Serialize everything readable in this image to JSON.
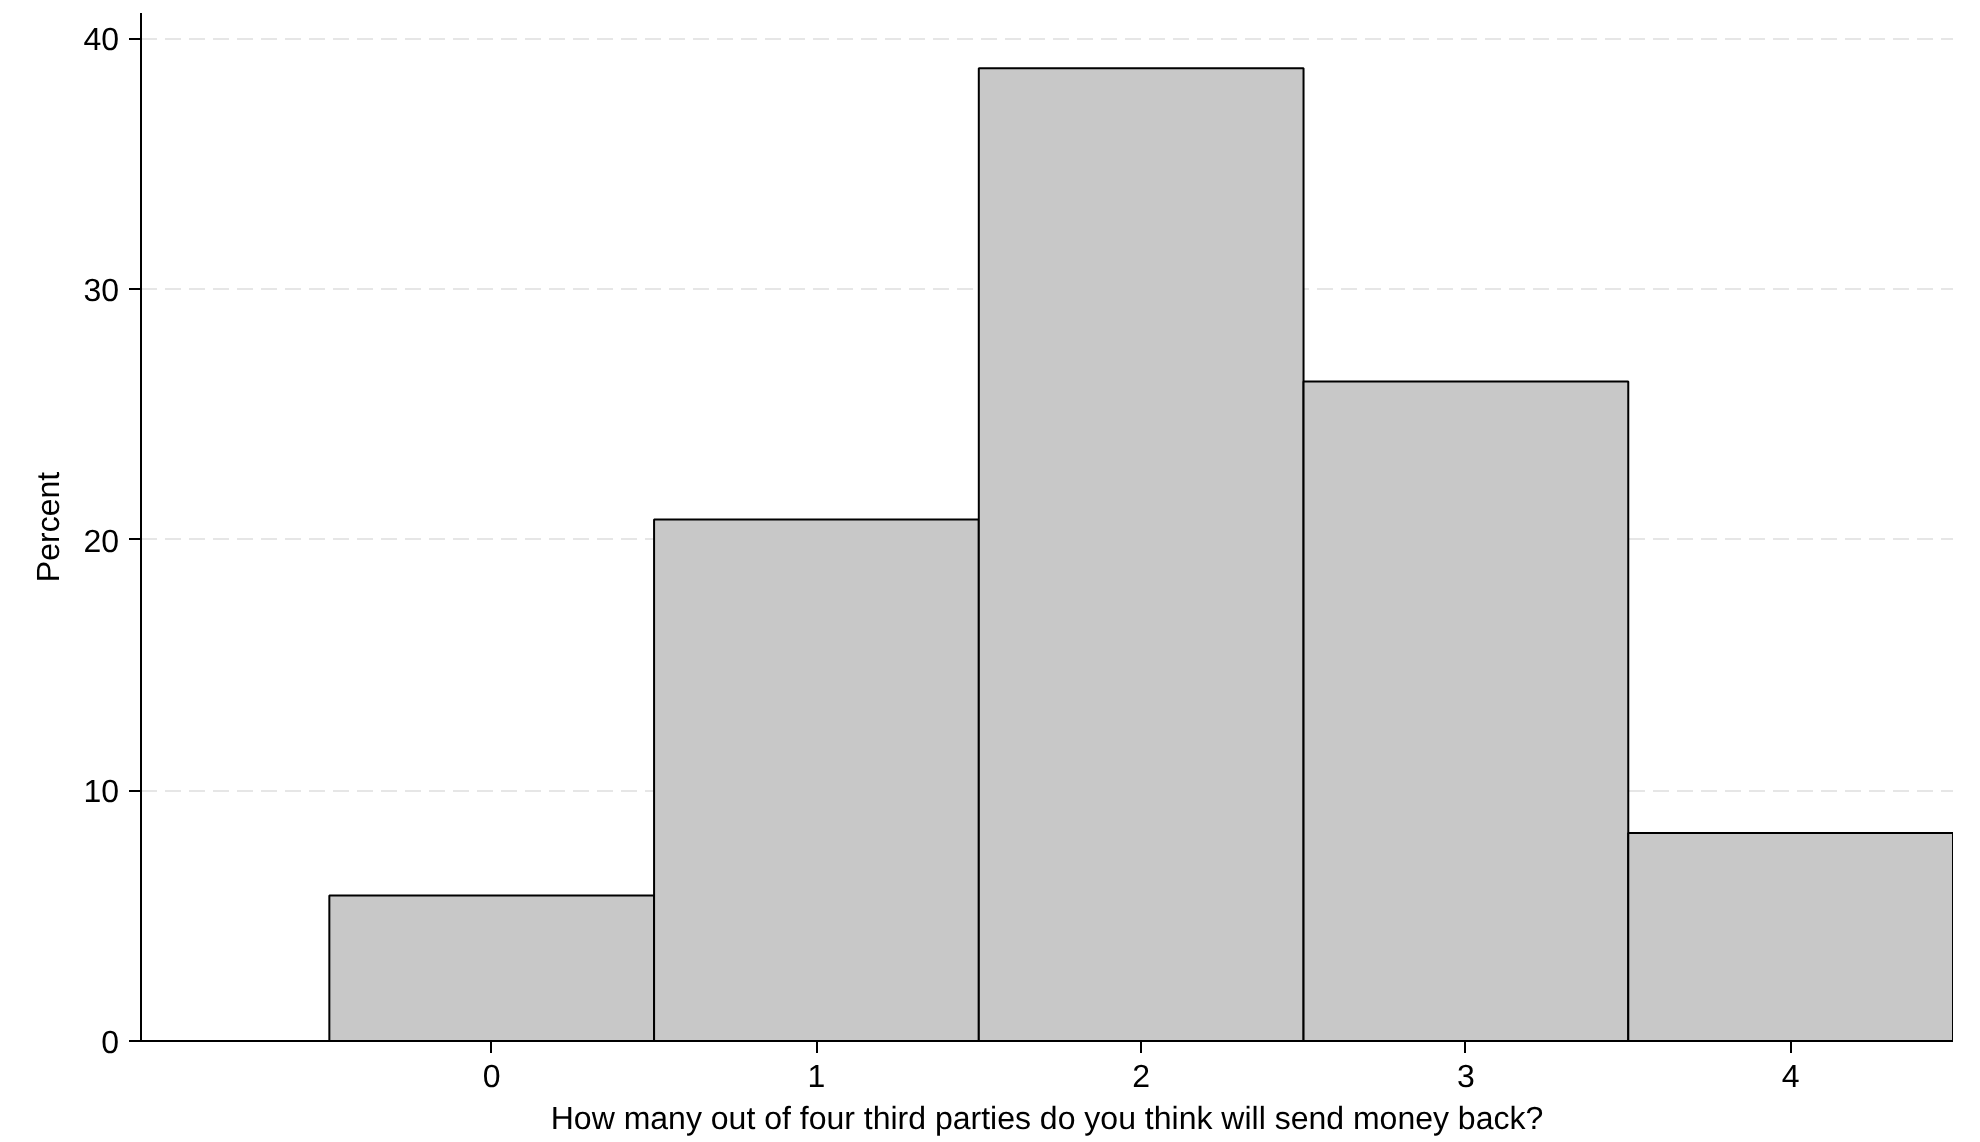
{
  "chart_data": {
    "type": "histogram",
    "xlabel": "How many out of four third parties do you think will send money back?",
    "ylabel": "Percent",
    "bins": [
      -0.5,
      0.5,
      1.5,
      2.5,
      3.5,
      4.5
    ],
    "values": [
      5.8,
      20.8,
      38.8,
      26.3,
      8.3
    ],
    "color": "#c8c8c8",
    "xlim": [
      -1.08,
      4.5
    ],
    "xticks": [
      0,
      1,
      2,
      3,
      4
    ],
    "ylim": [
      0,
      41
    ],
    "yticks": [
      0,
      10,
      20,
      30,
      40
    ],
    "grid": "y"
  }
}
